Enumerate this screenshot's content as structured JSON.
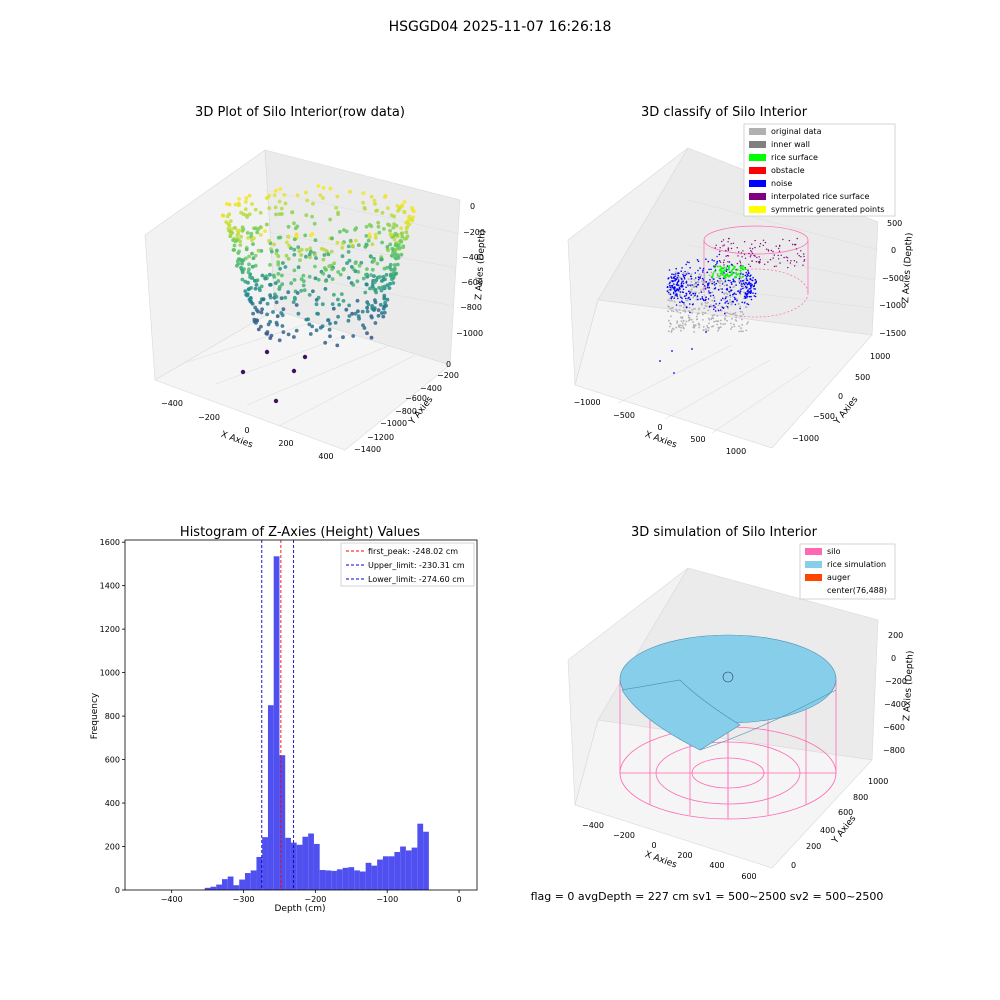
{
  "figure": {
    "suptitle": "HSGGD04 2025-11-07 16:26:18",
    "status_line": "flag = 0     avgDepth = 227 cm  sv1 = 500~2500  sv2 = 500~2500"
  },
  "colors": {
    "histogram_bar": "#5050f0",
    "first_peak_line": "#ff0000",
    "limit_line": "#0000cc",
    "silo": "#ff69b4",
    "rice_simulation": "#87ceeb",
    "auger": "#ff4500",
    "original_data": "#b0b0b0",
    "inner_wall": "#808080",
    "rice_surface": "#00ff00",
    "obstacle": "#ff0000",
    "noise": "#0000ff",
    "interpolated_rice_surface": "#800080",
    "symmetric_generated_points": "#ffff00",
    "grid": "#e6e6e6",
    "pane": "#f2f2f2"
  },
  "chart_data": [
    {
      "type": "scatter",
      "projection": "3d",
      "title": "3D Plot of Silo Interior(row data)",
      "xlabel": "X Axies",
      "ylabel": "Y Axies",
      "zlabel": "Z Axies (Depth)",
      "xticks": [
        "−400",
        "−200",
        "0",
        "200",
        "400"
      ],
      "yticks": [
        "0",
        "−200",
        "−400",
        "−600",
        "−800",
        "−1000",
        "−1200",
        "−1400"
      ],
      "zticks": [
        "0",
        "−200",
        "−400",
        "−600",
        "−800",
        "−1000"
      ],
      "colormap": "viridis",
      "grid": true
    },
    {
      "type": "scatter",
      "projection": "3d",
      "title": "3D classify of Silo Interior",
      "xlabel": "X Axies",
      "ylabel": "Y Axies",
      "zlabel": "Z Axies (Depth)",
      "xticks": [
        "−1000",
        "−500",
        "0",
        "500",
        "1000"
      ],
      "yticks": [
        "1000",
        "500",
        "0",
        "−500",
        "−1000"
      ],
      "zticks": [
        "500",
        "0",
        "−500",
        "−1000",
        "−1500"
      ],
      "legend": [
        "original data",
        "inner wall",
        "rice surface",
        "obstacle",
        "noise",
        "interpolated rice surface",
        "symmetric generated points"
      ],
      "legend_position": "top-right",
      "grid": true
    },
    {
      "type": "bar",
      "title": "Histogram of Z-Axies (Height) Values",
      "xlabel": "Depth (cm)",
      "ylabel": "Frequency",
      "xlim": [
        -465,
        25
      ],
      "ylim": [
        0,
        1610
      ],
      "xticks": [
        {
          "value": -400,
          "label": "−400"
        },
        {
          "value": -300,
          "label": "−300"
        },
        {
          "value": -200,
          "label": "−200"
        },
        {
          "value": -100,
          "label": "−100"
        },
        {
          "value": 0,
          "label": "0"
        }
      ],
      "yticks": [
        {
          "value": 0,
          "label": "0"
        },
        {
          "value": 200,
          "label": "200"
        },
        {
          "value": 400,
          "label": "400"
        },
        {
          "value": 600,
          "label": "600"
        },
        {
          "value": 800,
          "label": "800"
        },
        {
          "value": 1000,
          "label": "1000"
        },
        {
          "value": 1200,
          "label": "1200"
        },
        {
          "value": 1400,
          "label": "1400"
        },
        {
          "value": 1600,
          "label": "1600"
        }
      ],
      "bin_width": 8,
      "bins": [
        {
          "x0": -362,
          "count": 1
        },
        {
          "x0": -354,
          "count": 10
        },
        {
          "x0": -346,
          "count": 15
        },
        {
          "x0": -338,
          "count": 25
        },
        {
          "x0": -330,
          "count": 50
        },
        {
          "x0": -322,
          "count": 62
        },
        {
          "x0": -314,
          "count": 22
        },
        {
          "x0": -306,
          "count": 48
        },
        {
          "x0": -298,
          "count": 78
        },
        {
          "x0": -290,
          "count": 90
        },
        {
          "x0": -282,
          "count": 152
        },
        {
          "x0": -274,
          "count": 243
        },
        {
          "x0": -266,
          "count": 850
        },
        {
          "x0": -258,
          "count": 1535
        },
        {
          "x0": -250,
          "count": 620
        },
        {
          "x0": -242,
          "count": 240
        },
        {
          "x0": -234,
          "count": 218
        },
        {
          "x0": -226,
          "count": 208
        },
        {
          "x0": -218,
          "count": 245
        },
        {
          "x0": -210,
          "count": 260
        },
        {
          "x0": -202,
          "count": 212
        },
        {
          "x0": -194,
          "count": 92
        },
        {
          "x0": -186,
          "count": 90
        },
        {
          "x0": -178,
          "count": 88
        },
        {
          "x0": -170,
          "count": 95
        },
        {
          "x0": -162,
          "count": 102
        },
        {
          "x0": -154,
          "count": 105
        },
        {
          "x0": -146,
          "count": 90
        },
        {
          "x0": -138,
          "count": 85
        },
        {
          "x0": -130,
          "count": 125
        },
        {
          "x0": -122,
          "count": 112
        },
        {
          "x0": -114,
          "count": 140
        },
        {
          "x0": -106,
          "count": 155
        },
        {
          "x0": -98,
          "count": 155
        },
        {
          "x0": -90,
          "count": 175
        },
        {
          "x0": -82,
          "count": 200
        },
        {
          "x0": -74,
          "count": 182
        },
        {
          "x0": -66,
          "count": 195
        },
        {
          "x0": -58,
          "count": 305
        },
        {
          "x0": -50,
          "count": 268
        }
      ],
      "vlines": [
        {
          "name": "first_peak: -248.02 cm",
          "x": -248.02,
          "color_key": "first_peak_line"
        },
        {
          "name": "Upper_limit: -230.31 cm",
          "x": -230.31,
          "color_key": "limit_line"
        },
        {
          "name": "Lower_limit: -274.60 cm",
          "x": -274.6,
          "color_key": "limit_line"
        }
      ],
      "legend_position": "top-right"
    },
    {
      "type": "surface",
      "projection": "3d",
      "title": "3D simulation of Silo Interior",
      "xlabel": "X Axies",
      "ylabel": "Y Axies",
      "zlabel": "Z Axies (Depth)",
      "xticks": [
        "−400",
        "−200",
        "0",
        "200",
        "400",
        "600"
      ],
      "yticks": [
        "0",
        "200",
        "400",
        "600",
        "800",
        "1000"
      ],
      "zticks": [
        "200",
        "0",
        "−200",
        "−400",
        "−600",
        "−800"
      ],
      "legend": [
        "silo",
        "rice simulation",
        "auger",
        "center(76,488)"
      ],
      "legend_position": "top-right",
      "grid": true
    }
  ]
}
